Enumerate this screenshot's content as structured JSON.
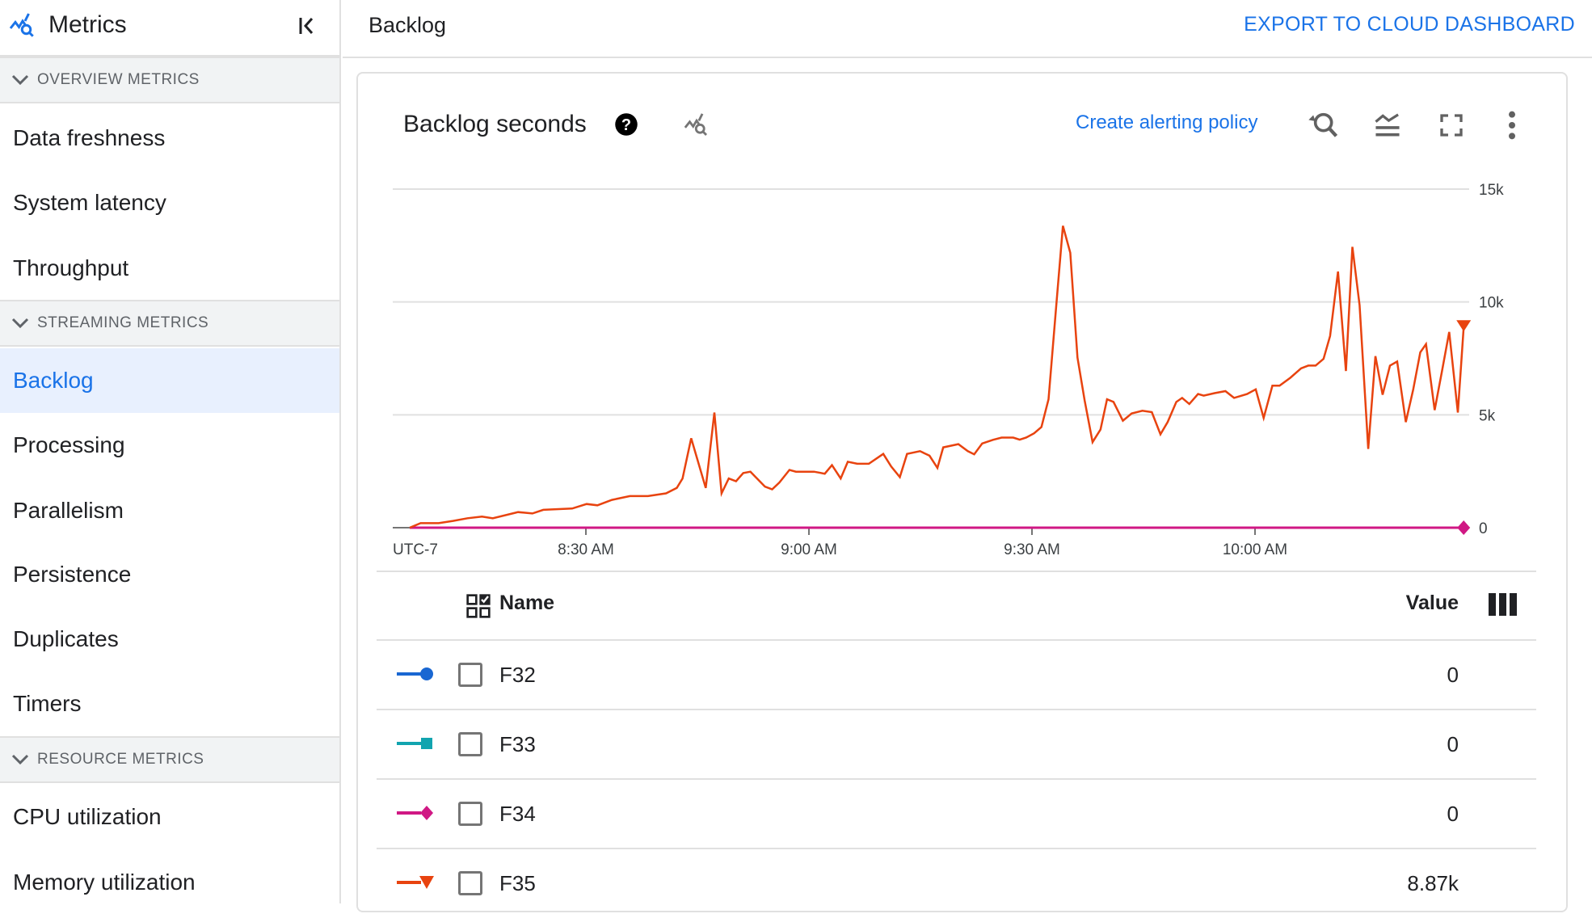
{
  "sidebar": {
    "title": "Metrics",
    "sections": [
      {
        "label": "OVERVIEW METRICS",
        "items": [
          "Data freshness",
          "System latency",
          "Throughput"
        ]
      },
      {
        "label": "STREAMING METRICS",
        "items": [
          "Backlog",
          "Processing",
          "Parallelism",
          "Persistence",
          "Duplicates",
          "Timers"
        ]
      },
      {
        "label": "RESOURCE METRICS",
        "items": [
          "CPU utilization",
          "Memory utilization"
        ]
      }
    ],
    "active_item": "Backlog"
  },
  "header": {
    "title": "Backlog",
    "export_label": "EXPORT TO CLOUD DASHBOARD"
  },
  "card": {
    "title": "Backlog seconds",
    "alert_label": "Create alerting policy"
  },
  "colors": {
    "accent": "#1a73e8",
    "F32": "#1967d2",
    "F33": "#12a4af",
    "F34": "#d01884",
    "F35": "#e8430f"
  },
  "table": {
    "headers": {
      "name": "Name",
      "value": "Value"
    },
    "rows": [
      {
        "name": "F32",
        "value": "0",
        "marker": "circle"
      },
      {
        "name": "F33",
        "value": "0",
        "marker": "square"
      },
      {
        "name": "F34",
        "value": "0",
        "marker": "diamond"
      },
      {
        "name": "F35",
        "value": "8.87k",
        "marker": "triangle-down"
      }
    ]
  },
  "chart_data": {
    "type": "line",
    "title": "Backlog seconds",
    "timezone_label": "UTC-7",
    "x_ticks": [
      "8:30 AM",
      "9:00 AM",
      "9:30 AM",
      "10:00 AM"
    ],
    "y_ticks": [
      "0",
      "5k",
      "10k",
      "15k"
    ],
    "ylim": [
      0,
      15000
    ],
    "grid": true,
    "series": [
      {
        "name": "F32",
        "points": [
          [
            "08:06:18",
            0
          ],
          [
            "10:28:04",
            0
          ]
        ]
      },
      {
        "name": "F33",
        "points": [
          [
            "08:06:18",
            0
          ],
          [
            "10:28:04",
            0
          ]
        ]
      },
      {
        "name": "F34",
        "points": [
          [
            "08:06:18",
            0
          ],
          [
            "10:28:04",
            0
          ]
        ]
      },
      {
        "name": "F35",
        "points": [
          [
            "08:06:18",
            0
          ],
          [
            "08:07:46",
            200
          ],
          [
            "08:10:12",
            200
          ],
          [
            "08:12:08",
            300
          ],
          [
            "08:14:05",
            420
          ],
          [
            "08:16:01",
            490
          ],
          [
            "08:17:29",
            420
          ],
          [
            "08:20:53",
            690
          ],
          [
            "08:22:48",
            630
          ],
          [
            "08:24:16",
            790
          ],
          [
            "08:28:09",
            850
          ],
          [
            "08:30:06",
            1050
          ],
          [
            "08:31:33",
            990
          ],
          [
            "08:33:30",
            1230
          ],
          [
            "08:35:55",
            1400
          ],
          [
            "08:38:21",
            1400
          ],
          [
            "08:40:47",
            1520
          ],
          [
            "08:42:14",
            1760
          ],
          [
            "08:43:00",
            2180
          ],
          [
            "08:44:10",
            3960
          ],
          [
            "08:46:07",
            1760
          ],
          [
            "08:47:17",
            5100
          ],
          [
            "08:48:15",
            1520
          ],
          [
            "08:49:13",
            2180
          ],
          [
            "08:50:12",
            2060
          ],
          [
            "08:51:10",
            2420
          ],
          [
            "08:52:08",
            2480
          ],
          [
            "08:54:05",
            1820
          ],
          [
            "08:55:03",
            1700
          ],
          [
            "08:56:01",
            2000
          ],
          [
            "08:57:23",
            2560
          ],
          [
            "08:58:15",
            2480
          ],
          [
            "09:00:41",
            2480
          ],
          [
            "09:02:08",
            2390
          ],
          [
            "09:03:06",
            2770
          ],
          [
            "09:04:16",
            2180
          ],
          [
            "09:05:14",
            2920
          ],
          [
            "09:06:30",
            2830
          ],
          [
            "09:08:03",
            2830
          ],
          [
            "09:10:00",
            3270
          ],
          [
            "09:11:04",
            2710
          ],
          [
            "09:12:14",
            2240
          ],
          [
            "09:13:12",
            3270
          ],
          [
            "09:14:57",
            3390
          ],
          [
            "09:16:13",
            3190
          ],
          [
            "09:17:17",
            2650
          ],
          [
            "09:18:04",
            3560
          ],
          [
            "09:20:06",
            3700
          ],
          [
            "09:21:22",
            3390
          ],
          [
            "09:22:14",
            3250
          ],
          [
            "09:23:18",
            3730
          ],
          [
            "09:24:45",
            3890
          ],
          [
            "09:25:55",
            3990
          ],
          [
            "09:27:29",
            3990
          ],
          [
            "09:28:21",
            3900
          ],
          [
            "09:29:13",
            3990
          ],
          [
            "09:30:17",
            4180
          ],
          [
            "09:31:16",
            4460
          ],
          [
            "09:32:14",
            5690
          ],
          [
            "09:33:12",
            9560
          ],
          [
            "09:34:10",
            13370
          ],
          [
            "09:35:09",
            12180
          ],
          [
            "09:36:07",
            7540
          ],
          [
            "09:37:05",
            5630
          ],
          [
            "09:38:09",
            3790
          ],
          [
            "09:39:13",
            4350
          ],
          [
            "09:40:06",
            5690
          ],
          [
            "09:40:58",
            5570
          ],
          [
            "09:42:14",
            4740
          ],
          [
            "09:43:24",
            5060
          ],
          [
            "09:44:51",
            5180
          ],
          [
            "09:46:07",
            5120
          ],
          [
            "09:47:17",
            4140
          ],
          [
            "09:48:15",
            4680
          ],
          [
            "09:49:25",
            5570
          ],
          [
            "09:50:12",
            5750
          ],
          [
            "09:51:10",
            5480
          ],
          [
            "09:52:20",
            5920
          ],
          [
            "09:53:06",
            5850
          ],
          [
            "09:54:34",
            5960
          ],
          [
            "09:56:01",
            6050
          ],
          [
            "09:57:11",
            5750
          ],
          [
            "09:58:56",
            5920
          ],
          [
            "10:00:06",
            6130
          ],
          [
            "10:01:10",
            4860
          ],
          [
            "10:02:20",
            6290
          ],
          [
            "10:03:18",
            6290
          ],
          [
            "10:04:45",
            6640
          ],
          [
            "10:06:12",
            7060
          ],
          [
            "10:07:10",
            7180
          ],
          [
            "10:08:09",
            7180
          ],
          [
            "10:09:13",
            7480
          ],
          [
            "10:10:06",
            8490
          ],
          [
            "10:11:10",
            11350
          ],
          [
            "10:12:14",
            6940
          ],
          [
            "10:13:06",
            12440
          ],
          [
            "10:14:04",
            9860
          ],
          [
            "10:15:14",
            3490
          ],
          [
            "10:16:12",
            7600
          ],
          [
            "10:17:10",
            5890
          ],
          [
            "10:18:09",
            7180
          ],
          [
            "10:19:07",
            7360
          ],
          [
            "10:20:17",
            4680
          ],
          [
            "10:21:16",
            6110
          ],
          [
            "10:22:14",
            7770
          ],
          [
            "10:23:00",
            8130
          ],
          [
            "10:24:10",
            5210
          ],
          [
            "10:25:09",
            6940
          ],
          [
            "10:26:07",
            8670
          ],
          [
            "10:27:17",
            5100
          ],
          [
            "10:28:04",
            8870
          ]
        ]
      }
    ]
  }
}
